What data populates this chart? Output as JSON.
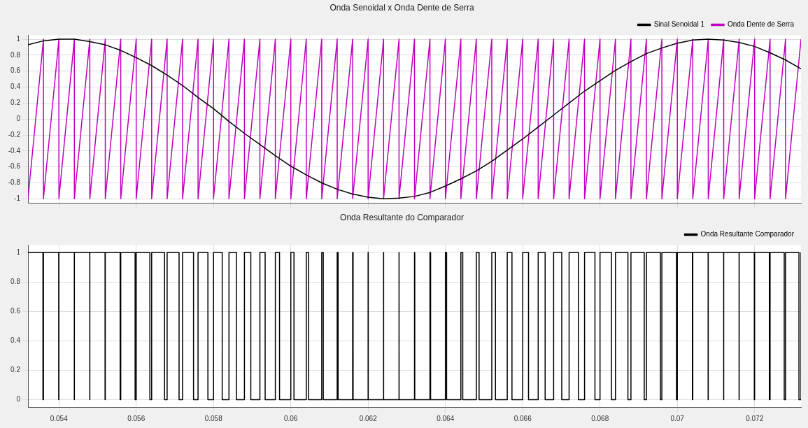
{
  "chart_data": [
    {
      "type": "line",
      "title": "Onda Senoidal x Onda Dente de Serra",
      "xlim": [
        0.0532,
        0.0732
      ],
      "xticks": [
        0.054,
        0.056,
        0.058,
        0.06,
        0.062,
        0.064,
        0.066,
        0.068,
        0.07,
        0.072
      ],
      "ylim": [
        -1.05,
        1.05
      ],
      "yticks": [
        -1,
        -0.8,
        -0.6,
        -0.4,
        -0.2,
        0,
        0.2,
        0.4,
        0.6,
        0.8,
        1
      ],
      "grid": true,
      "legend": "top right",
      "tick_labels": "y",
      "marker": "none",
      "series": [
        {
          "name": "Sinal Senoidal 1",
          "color": "#000000",
          "x": [
            0.0532,
            0.0536,
            0.054,
            0.0544,
            0.0548,
            0.0552,
            0.0556,
            0.056,
            0.0564,
            0.0568,
            0.0572,
            0.0576,
            0.058,
            0.0584,
            0.0588,
            0.0592,
            0.0596,
            0.06,
            0.0604,
            0.0608,
            0.0612,
            0.0616,
            0.062,
            0.0624,
            0.0628,
            0.0632,
            0.0636,
            0.064,
            0.0644,
            0.0648,
            0.0652,
            0.0656,
            0.066,
            0.0664,
            0.0668,
            0.0672,
            0.0676,
            0.068,
            0.0684,
            0.0688,
            0.0692,
            0.0696,
            0.07,
            0.0704,
            0.0708,
            0.0712,
            0.0716,
            0.072,
            0.0724,
            0.0728,
            0.0732
          ],
          "values": [
            0.93,
            0.98,
            1,
            1,
            0.97,
            0.93,
            0.86,
            0.77,
            0.67,
            0.55,
            0.42,
            0.27,
            0.13,
            -0.03,
            -0.18,
            -0.32,
            -0.46,
            -0.59,
            -0.7,
            -0.8,
            -0.88,
            -0.94,
            -0.98,
            -1,
            -0.99,
            -0.97,
            -0.92,
            -0.84,
            -0.75,
            -0.65,
            -0.53,
            -0.39,
            -0.25,
            -0.1,
            0.05,
            0.2,
            0.35,
            0.48,
            0.61,
            0.72,
            0.82,
            0.89,
            0.95,
            0.99,
            1,
            0.99,
            0.96,
            0.91,
            0.83,
            0.74,
            0.63
          ]
        },
        {
          "name": "Onda Dente de Serra",
          "color": "#c000c0",
          "x": [
            0.0532,
            0.0536,
            0.0536,
            0.054,
            0.054,
            0.0544,
            0.0544,
            0.0548,
            0.0548,
            0.0552,
            0.0552,
            0.0556,
            0.0556,
            0.056,
            0.056,
            0.0564,
            0.0564,
            0.0568,
            0.0568,
            0.0572,
            0.0572,
            0.0576,
            0.0576,
            0.058,
            0.058,
            0.0584,
            0.0584,
            0.0588,
            0.0588,
            0.0592,
            0.0592,
            0.0596,
            0.0596,
            0.06,
            0.06,
            0.0604,
            0.0604,
            0.0608,
            0.0608,
            0.0612,
            0.0612,
            0.0616,
            0.0616,
            0.062,
            0.062,
            0.0624,
            0.0624,
            0.0628,
            0.0628,
            0.0632,
            0.0632,
            0.0636,
            0.0636,
            0.064,
            0.064,
            0.0644,
            0.0644,
            0.0648,
            0.0648,
            0.0652,
            0.0652,
            0.0656,
            0.0656,
            0.066,
            0.066,
            0.0664,
            0.0664,
            0.0668,
            0.0668,
            0.0672,
            0.0672,
            0.0676,
            0.0676,
            0.068,
            0.068,
            0.0684,
            0.0684,
            0.0688,
            0.0688,
            0.0692,
            0.0692,
            0.0696,
            0.0696,
            0.07,
            0.07,
            0.0704,
            0.0704,
            0.0708,
            0.0708,
            0.0712,
            0.0712,
            0.0716,
            0.0716,
            0.072,
            0.072,
            0.0724,
            0.0724,
            0.0728,
            0.0728,
            0.0732
          ],
          "values": [
            -1,
            1,
            -1,
            1,
            -1,
            1,
            -1,
            1,
            -1,
            1,
            -1,
            1,
            -1,
            1,
            -1,
            1,
            -1,
            1,
            -1,
            1,
            -1,
            1,
            -1,
            1,
            -1,
            1,
            -1,
            1,
            -1,
            1,
            -1,
            1,
            -1,
            1,
            -1,
            1,
            -1,
            1,
            -1,
            1,
            -1,
            1,
            -1,
            1,
            -1,
            1,
            -1,
            1,
            -1,
            1,
            -1,
            1,
            -1,
            1,
            -1,
            1,
            -1,
            1,
            -1,
            1,
            -1,
            1,
            -1,
            1,
            -1,
            1,
            -1,
            1,
            -1,
            1,
            -1,
            1,
            -1,
            1,
            -1,
            1,
            -1,
            1,
            -1,
            1,
            -1,
            1,
            -1,
            1,
            -1,
            1,
            -1,
            1,
            -1,
            1,
            -1,
            1,
            -1,
            1,
            -1,
            1,
            -1,
            1,
            -1,
            1
          ]
        }
      ]
    },
    {
      "type": "step",
      "title": "Onda Resultante do Comparador",
      "xlim": [
        0.0532,
        0.0732
      ],
      "xticks": [
        0.054,
        0.056,
        0.058,
        0.06,
        0.062,
        0.064,
        0.066,
        0.068,
        0.07,
        0.072
      ],
      "ylim": [
        -0.05,
        1.05
      ],
      "yticks": [
        0,
        0.2,
        0.4,
        0.6,
        0.8,
        1
      ],
      "grid": true,
      "legend": "top right",
      "marker": "none",
      "series": [
        {
          "name": "Onda Resultante Comparador",
          "color": "#000000",
          "x": [
            0.0532,
            0.053587,
            0.0536,
            0.053995,
            0.054,
            0.054399,
            0.0544,
            0.054799,
            0.0548,
            0.055194,
            0.0552,
            0.055585,
            0.0556,
            0.055972,
            0.056,
            0.056354,
            0.0564,
            0.056733,
            0.0568,
            0.057109,
            0.0572,
            0.057483,
            0.0576,
            0.057855,
            0.058,
            0.058225,
            0.0584,
            0.058595,
            0.0588,
            0.058965,
            0.0592,
            0.059336,
            0.0596,
            0.059708,
            0.06,
            0.060082,
            0.0604,
            0.060459,
            0.0608,
            0.06084,
            0.0612,
            0.061224,
            0.0616,
            0.061612,
            0.062,
            0.062004,
            0.0624,
            0.062401,
            0.0628,
            0.062801,
            0.0632,
            0.063207,
            0.0636,
            0.063617,
            0.064,
            0.064031,
            0.0644,
            0.064449,
            0.0648,
            0.064871,
            0.0652,
            0.065295,
            0.0656,
            0.065722,
            0.066,
            0.06615,
            0.0664,
            0.06658,
            0.0668,
            0.06701,
            0.0672,
            0.06744,
            0.0676,
            0.067869,
            0.068,
            0.068296,
            0.0684,
            0.068722,
            0.0688,
            0.069144,
            0.0692,
            0.069563,
            0.0696,
            0.069979,
            0.07,
            0.07039,
            0.0704,
            0.070797,
            0.0708,
            0.071199,
            0.0712,
            0.071598,
            0.0716,
            0.071992,
            0.072,
            0.072381,
            0.0724,
            0.072766,
            0.0728,
            0.073147,
            0.0732
          ],
          "values": [
            1,
            0,
            1,
            0,
            1,
            0,
            1,
            0,
            1,
            0,
            1,
            0,
            1,
            0,
            1,
            0,
            1,
            0,
            1,
            0,
            1,
            0,
            1,
            0,
            1,
            0,
            1,
            0,
            1,
            0,
            1,
            0,
            1,
            0,
            1,
            0,
            1,
            0,
            1,
            0,
            1,
            0,
            1,
            0,
            1,
            0,
            1,
            0,
            1,
            0,
            1,
            0,
            1,
            0,
            1,
            0,
            1,
            0,
            1,
            0,
            1,
            0,
            1,
            0,
            1,
            0,
            1,
            0,
            1,
            0,
            1,
            0,
            1,
            0,
            1,
            0,
            1,
            0,
            1,
            0,
            1,
            0,
            1,
            0,
            1,
            0,
            1,
            0,
            1,
            0,
            1,
            0,
            1,
            0,
            1,
            0,
            1,
            0,
            1,
            0,
            1
          ]
        }
      ]
    }
  ]
}
